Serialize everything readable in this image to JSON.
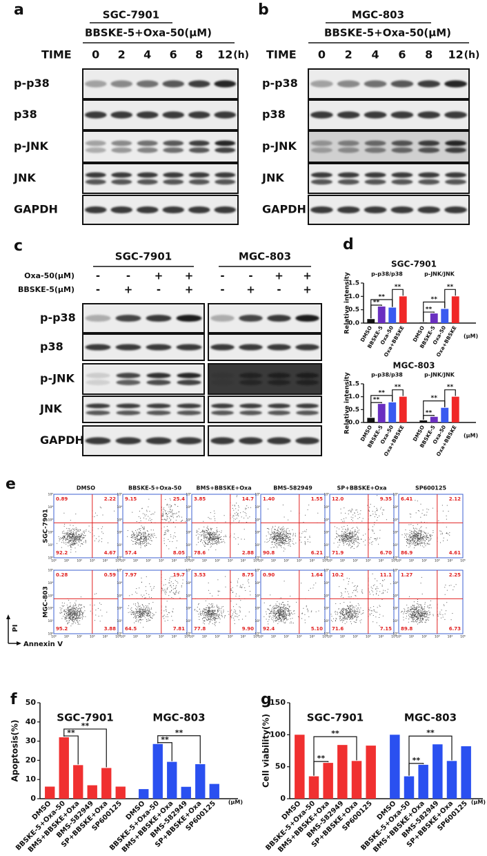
{
  "panel_labels": [
    "a",
    "b",
    "c",
    "d",
    "e",
    "f",
    "g"
  ],
  "blots_time": [
    {
      "cell_line": "SGC-7901",
      "treatment": "BBSKE-5+Oxa-50(μM)",
      "time_label": "TIME",
      "times": [
        "0",
        "2",
        "4",
        "6",
        "8",
        "12"
      ],
      "time_unit": "(h)",
      "rows": [
        "p-p38",
        "p38",
        "p-JNK",
        "JNK",
        "GAPDH"
      ]
    },
    {
      "cell_line": "MGC-803",
      "treatment": "BBSKE-5+Oxa-50(μM)",
      "time_label": "TIME",
      "times": [
        "0",
        "2",
        "4",
        "6",
        "8",
        "12"
      ],
      "time_unit": "(h)",
      "rows": [
        "p-p38",
        "p38",
        "p-JNK",
        "JNK",
        "GAPDH"
      ]
    }
  ],
  "blots_treatment": {
    "cell_lines": [
      "SGC-7901",
      "MGC-803"
    ],
    "treatments": [
      {
        "name": "Oxa-50(μM)",
        "signs": [
          "-",
          "-",
          "+",
          "+"
        ]
      },
      {
        "name": "BBSKE-5(μM)",
        "signs": [
          "-",
          "+",
          "-",
          "+"
        ]
      }
    ],
    "rows": [
      "p-p38",
      "p38",
      "p-JNK",
      "JNK",
      "GAPDH"
    ]
  },
  "flow": {
    "columns": [
      "DMSO",
      "BBSKE-5+Oxa-50",
      "BMS+BBSKE+Oxa",
      "BMS-582949",
      "SP+BBSKE+Oxa",
      "SP600125"
    ],
    "rows": [
      {
        "name": "SGC-7901",
        "quadrants": [
          [
            "0.89",
            "2.22",
            "92.2",
            "4.67"
          ],
          [
            "9.15",
            "25.4",
            "57.4",
            "8.05"
          ],
          [
            "3.85",
            "14.7",
            "78.6",
            "2.88"
          ],
          [
            "1.40",
            "1.55",
            "90.8",
            "6.21"
          ],
          [
            "12.0",
            "9.35",
            "71.9",
            "6.70"
          ],
          [
            "6.41",
            "2.12",
            "86.9",
            "4.61"
          ]
        ]
      },
      {
        "name": "MGC-803",
        "quadrants": [
          [
            "0.28",
            "0.59",
            "95.2",
            "3.88"
          ],
          [
            "7.97",
            "19.7",
            "64.5",
            "7.81"
          ],
          [
            "3.53",
            "8.75",
            "77.8",
            "9.90"
          ],
          [
            "0.90",
            "1.64",
            "92.4",
            "5.10"
          ],
          [
            "10.2",
            "11.1",
            "71.6",
            "7.15"
          ],
          [
            "1.27",
            "2.25",
            "89.8",
            "6.73"
          ]
        ]
      }
    ],
    "log_ticks": [
      "10⁰",
      "10¹",
      "10²",
      "10³",
      "10⁴",
      "10⁵"
    ],
    "y_axis": "PI",
    "x_axis": "Annexin V"
  },
  "chart_data": [
    {
      "type": "bar",
      "title": "SGC-7901",
      "y_label": "Relative intensity",
      "ylim": [
        0,
        1.5
      ],
      "yticks": [
        {
          "value": 0,
          "label": "0.0"
        },
        0.5,
        {
          "value": 1,
          "label": "1.0"
        },
        1.5
      ],
      "categories": [
        "DMSO",
        "BBSKE-5",
        "Oxa-50",
        "Oxa+BBSKE"
      ],
      "colors": [
        "#111111",
        "#6a2fc0",
        "#3a5af0",
        "#f02828"
      ],
      "groups": [
        {
          "name": "p-p38/p38",
          "values": [
            0.15,
            0.62,
            0.58,
            1.0
          ]
        },
        {
          "name": "p-JNK/JNK",
          "values": [
            0.02,
            0.36,
            0.53,
            1.0
          ]
        }
      ],
      "unit": "(μM)",
      "significance": [
        {
          "group": 0,
          "pair": [
            0,
            1
          ],
          "label": "**"
        },
        {
          "group": 0,
          "pair": [
            0,
            2
          ],
          "label": "**"
        },
        {
          "group": 0,
          "pair": [
            2,
            3
          ],
          "label": "**"
        },
        {
          "group": 1,
          "pair": [
            0,
            1
          ],
          "label": "**"
        },
        {
          "group": 1,
          "pair": [
            0,
            2
          ],
          "label": "**"
        },
        {
          "group": 1,
          "pair": [
            2,
            3
          ],
          "label": "**"
        }
      ]
    },
    {
      "type": "bar",
      "title": "MGC-803",
      "y_label": "Relative intensity",
      "ylim": [
        0,
        1.5
      ],
      "yticks": [
        {
          "value": 0,
          "label": "0.0"
        },
        0.5,
        {
          "value": 1,
          "label": "1.0"
        },
        1.5
      ],
      "categories": [
        "DMSO",
        "BBSKE-5",
        "Oxa-50",
        "Oxa+BBSKE"
      ],
      "colors": [
        "#111111",
        "#6a2fc0",
        "#3a5af0",
        "#f02828"
      ],
      "groups": [
        {
          "name": "p-p38/p38",
          "values": [
            0.18,
            0.72,
            0.78,
            1.0
          ]
        },
        {
          "name": "p-JNK/JNK",
          "values": [
            0.08,
            0.22,
            0.57,
            1.0
          ]
        }
      ],
      "unit": "(μM)",
      "significance": [
        {
          "group": 0,
          "pair": [
            0,
            1
          ],
          "label": "**"
        },
        {
          "group": 0,
          "pair": [
            0,
            2
          ],
          "label": "**"
        },
        {
          "group": 0,
          "pair": [
            2,
            3
          ],
          "label": "**"
        },
        {
          "group": 1,
          "pair": [
            0,
            1
          ],
          "label": "**"
        },
        {
          "group": 1,
          "pair": [
            0,
            2
          ],
          "label": "**"
        },
        {
          "group": 1,
          "pair": [
            2,
            3
          ],
          "label": "**"
        }
      ]
    },
    {
      "type": "bar",
      "y_label": "Apoptosis(%)",
      "ylim": [
        0,
        50
      ],
      "yticks": [
        0,
        10,
        20,
        30,
        40,
        50
      ],
      "categories": [
        "DMSO",
        "BBSKE-5+Oxa-50",
        "BMS+BBSKE+Oxa",
        "BMS-582949",
        "SP+BBSKE+Oxa",
        "SP600125"
      ],
      "groups": [
        {
          "name": "SGC-7901",
          "color": "#f03030",
          "values": [
            6.3,
            32,
            17.5,
            7,
            16,
            6.3
          ]
        },
        {
          "name": "MGC-803",
          "color": "#2a50f0",
          "values": [
            5,
            28.5,
            19.2,
            6.2,
            18,
            7.7
          ]
        }
      ],
      "unit": "(μM)",
      "significance": [
        {
          "group": 0,
          "pair": [
            1,
            2
          ],
          "label": "**"
        },
        {
          "group": 0,
          "pair": [
            1,
            4
          ],
          "label": "**"
        },
        {
          "group": 1,
          "pair": [
            1,
            2
          ],
          "label": "**"
        },
        {
          "group": 1,
          "pair": [
            1,
            4
          ],
          "label": "**"
        }
      ]
    },
    {
      "type": "bar",
      "y_label": "Cell viability(%)",
      "ylim": [
        0,
        150
      ],
      "yticks": [
        0,
        50,
        100,
        150
      ],
      "categories": [
        "DMSO",
        "BBSKE-5+Oxa-50",
        "BMS+BBSKE+Oxa",
        "BMS-582949",
        "SP+BBSKE+Oxa",
        "SP600125"
      ],
      "groups": [
        {
          "name": "SGC-7901",
          "color": "#f03030",
          "values": [
            100,
            35,
            56,
            84,
            59,
            83
          ]
        },
        {
          "name": "MGC-803",
          "color": "#2a50f0",
          "values": [
            100,
            35,
            53,
            85,
            59,
            82
          ]
        }
      ],
      "unit": "(μM)",
      "significance": [
        {
          "group": 0,
          "pair": [
            1,
            2
          ],
          "label": "**"
        },
        {
          "group": 0,
          "pair": [
            1,
            4
          ],
          "label": "**"
        },
        {
          "group": 1,
          "pair": [
            1,
            2
          ],
          "label": "**"
        },
        {
          "group": 1,
          "pair": [
            1,
            4
          ],
          "label": "**"
        }
      ]
    }
  ]
}
